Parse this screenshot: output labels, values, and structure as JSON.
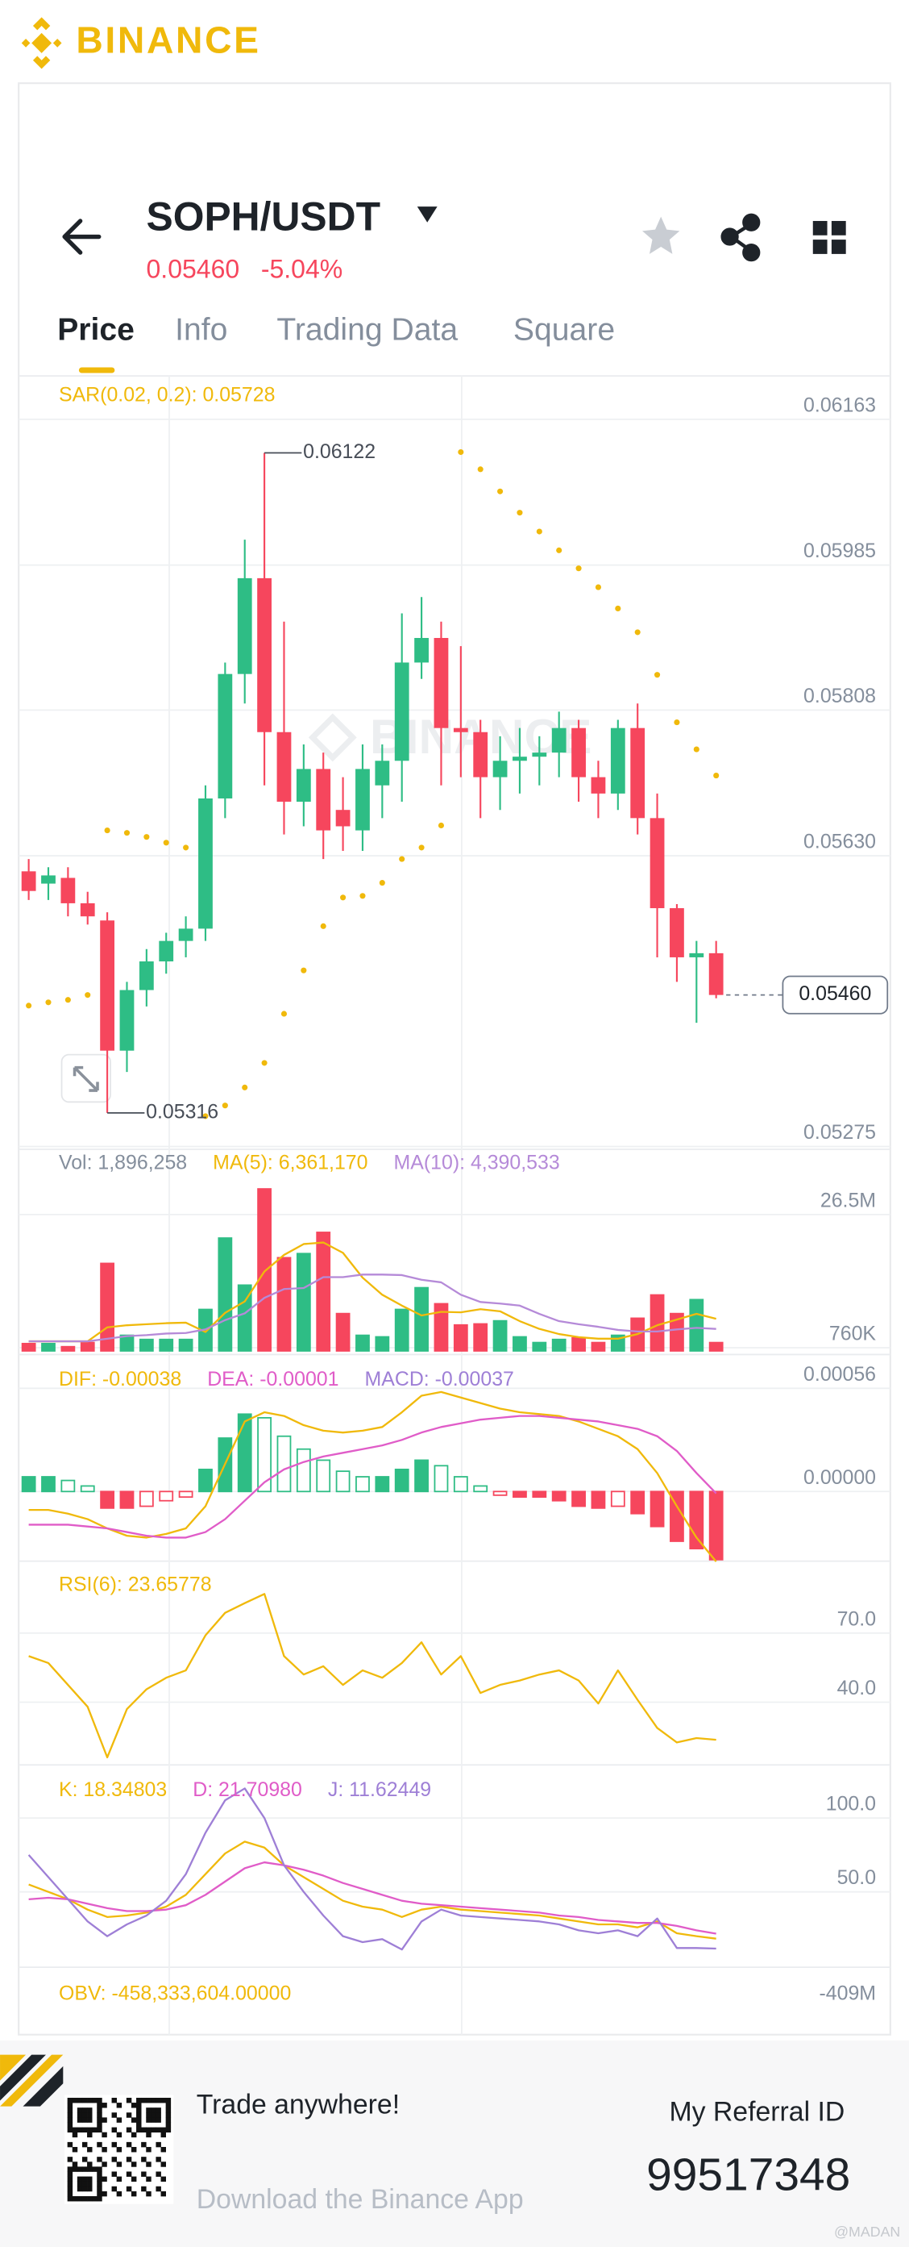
{
  "header": {
    "brand": "BINANCE"
  },
  "ticker": {
    "pair": "SOPH/USDT",
    "price": "0.05460",
    "change": "-5.04%"
  },
  "tabs": [
    "Price",
    "Info",
    "Trading Data",
    "Square"
  ],
  "chart_data": [
    {
      "type": "candlestick",
      "title": "SAR(0.02, 0.2): 0.05728",
      "title_color": "#f0b90b",
      "up_color": "#2ebd85",
      "down_color": "#f6465d",
      "sar_color": "#f0b90b",
      "grid": true,
      "open": [
        0.05611,
        0.05596,
        0.05603,
        0.05572,
        0.05551,
        0.05392,
        0.05466,
        0.05501,
        0.05526,
        0.05541,
        0.057,
        0.05852,
        0.05969,
        0.05781,
        0.05696,
        0.05736,
        0.05686,
        0.05661,
        0.05716,
        0.05746,
        0.05866,
        0.05896,
        0.05786,
        0.05781,
        0.05726,
        0.05746,
        0.05751,
        0.05756,
        0.05786,
        0.05726,
        0.05706,
        0.05786,
        0.05676,
        0.05566,
        0.05506,
        0.05511
      ],
      "high": [
        0.05626,
        0.05616,
        0.05616,
        0.05586,
        0.05561,
        0.05476,
        0.05516,
        0.05536,
        0.05556,
        0.05716,
        0.05866,
        0.06016,
        0.06122,
        0.05916,
        0.05766,
        0.05756,
        0.05726,
        0.05766,
        0.05766,
        0.05926,
        0.05946,
        0.05916,
        0.05886,
        0.05796,
        0.05776,
        0.05786,
        0.05776,
        0.05806,
        0.05796,
        0.05746,
        0.05796,
        0.05816,
        0.05706,
        0.05571,
        0.05526,
        0.05526
      ],
      "low": [
        0.05576,
        0.05576,
        0.05556,
        0.05546,
        0.05316,
        0.05366,
        0.05446,
        0.05486,
        0.05506,
        0.05526,
        0.05676,
        0.05816,
        0.05716,
        0.05656,
        0.05666,
        0.05626,
        0.05636,
        0.05636,
        0.05676,
        0.05696,
        0.05846,
        0.05716,
        0.05726,
        0.05676,
        0.05686,
        0.05706,
        0.05716,
        0.05726,
        0.05696,
        0.05676,
        0.05686,
        0.05656,
        0.05506,
        0.05476,
        0.05426,
        0.05456
      ],
      "close": [
        0.05587,
        0.05606,
        0.05572,
        0.05556,
        0.05392,
        0.05466,
        0.05501,
        0.05526,
        0.05541,
        0.057,
        0.05852,
        0.05969,
        0.05781,
        0.05696,
        0.05736,
        0.05661,
        0.05666,
        0.05736,
        0.05746,
        0.05866,
        0.05896,
        0.05786,
        0.05781,
        0.05726,
        0.05746,
        0.05751,
        0.05756,
        0.05786,
        0.05726,
        0.05706,
        0.05786,
        0.05676,
        0.05566,
        0.05506,
        0.05511,
        0.0546
      ],
      "sar": [
        0.05447,
        0.05451,
        0.05454,
        0.0546,
        0.05661,
        0.05658,
        0.05653,
        0.05646,
        0.0564,
        0.05312,
        0.05325,
        0.05347,
        0.05377,
        0.05437,
        0.0549,
        0.05544,
        0.05579,
        0.05581,
        0.05597,
        0.05626,
        0.0564,
        0.05667,
        0.06123,
        0.06102,
        0.06075,
        0.06049,
        0.06026,
        0.06003,
        0.05981,
        0.05958,
        0.05932,
        0.05903,
        0.05851,
        0.05793,
        0.0576,
        0.05728
      ],
      "max_label": 0.06122,
      "min_label": 0.05316,
      "last_price": {
        "value": 0.0546,
        "label": "0.05460"
      },
      "ylim": [
        0.05275,
        0.06216
      ],
      "yticks": [
        0.06163,
        0.05985,
        0.05808,
        {
          "value": 0.0563,
          "label": "0.05630"
        },
        0.05275
      ]
    },
    {
      "type": "bar",
      "title": "Vol: 1,896,258",
      "title_color": "#848e9c",
      "grid": true,
      "values": [
        1700000,
        1700000,
        1100000,
        1900000,
        17200000,
        3300000,
        2500000,
        2500000,
        2500000,
        8300000,
        22100000,
        13000000,
        31600000,
        18300000,
        19100000,
        23200000,
        7500000,
        3300000,
        3000000,
        8300000,
        12500000,
        9400000,
        5300000,
        5500000,
        6100000,
        3000000,
        1900000,
        2500000,
        2800000,
        1900000,
        3300000,
        6600000,
        11100000,
        7500000,
        10200000,
        1896258
      ],
      "series": [
        {
          "name": "MA(5): 6,361,170",
          "color": "#f0b90b",
          "values": [
            2000000,
            2000000,
            2000000,
            2000000,
            4700000,
            5100000,
            5300000,
            5500000,
            5600000,
            3800000,
            7500000,
            9700000,
            15500000,
            18700000,
            20800000,
            21100000,
            19100000,
            14300000,
            11000000,
            8900000,
            7000000,
            7700000,
            7600000,
            8200000,
            7800000,
            5900000,
            4400000,
            3400000,
            2800000,
            2500000,
            2500000,
            3400000,
            5100000,
            6200000,
            7300000,
            6361170
          ]
        },
        {
          "name": "MA(10): 4,390,533",
          "color": "#b58ad8",
          "values": [
            2000000,
            2000000,
            2000000,
            2000000,
            2500000,
            3000000,
            3200000,
            3500000,
            3600000,
            4300000,
            6100000,
            7400000,
            10400000,
            12100000,
            12300000,
            14400000,
            14400000,
            14900000,
            14900000,
            14800000,
            13900000,
            13400000,
            11000000,
            9600000,
            9300000,
            8900000,
            7300000,
            5900000,
            5300000,
            4800000,
            4200000,
            3900000,
            3900000,
            4300000,
            4600000,
            4390533
          ]
        }
      ],
      "ylim": [
        0,
        38000000
      ],
      "yticks": [
        {
          "value": 26500000,
          "label": "26.5M"
        },
        {
          "value": 760000,
          "label": "760K"
        }
      ]
    },
    {
      "type": "macd",
      "up_color": "#2ebd85",
      "down_color": "#f6465d",
      "grid": true,
      "series": [
        {
          "name": "DIF: -0.00038",
          "color": "#f0b90b",
          "values": [
            -0.0001,
            -0.0001,
            -0.00012,
            -0.00015,
            -0.0002,
            -0.00024,
            -0.00025,
            -0.00023,
            -0.0002,
            -8e-05,
            0.00015,
            0.00038,
            0.00043,
            0.00041,
            0.00036,
            0.00033,
            0.00032,
            0.00033,
            0.00035,
            0.00043,
            0.00052,
            0.00054,
            0.00051,
            0.00048,
            0.00045,
            0.00043,
            0.00042,
            0.00041,
            0.00038,
            0.00034,
            0.0003,
            0.00023,
            0.0001,
            -8e-05,
            -0.00025,
            -0.00038
          ]
        },
        {
          "name": "DEA: -0.00001",
          "color": "#e05cc8",
          "values": [
            -0.00018,
            -0.00018,
            -0.00018,
            -0.00019,
            -0.0002,
            -0.00022,
            -0.00024,
            -0.00025,
            -0.00025,
            -0.00022,
            -0.00015,
            -5e-05,
            5e-05,
            0.00012,
            0.00016,
            0.00019,
            0.00021,
            0.00023,
            0.00025,
            0.00028,
            0.00032,
            0.00035,
            0.00037,
            0.00039,
            0.0004,
            0.00041,
            0.00041,
            0.0004,
            0.00039,
            0.00038,
            0.00036,
            0.00034,
            0.0003,
            0.00022,
            0.0001,
            -1e-05
          ]
        }
      ],
      "histogram": {
        "name": "MACD: -0.00037",
        "color": "#9e7fd6",
        "values": [
          8e-05,
          8e-05,
          6e-05,
          3e-05,
          -9e-05,
          -9e-05,
          -8e-05,
          -5e-05,
          -3e-05,
          0.00012,
          0.00029,
          0.00042,
          0.0004,
          0.0003,
          0.00023,
          0.00017,
          0.00011,
          8e-05,
          8e-05,
          0.00012,
          0.00017,
          0.00014,
          8e-05,
          3e-05,
          -2e-05,
          -3e-05,
          -3e-05,
          -5e-05,
          -8e-05,
          -9e-05,
          -8e-05,
          -0.00012,
          -0.00019,
          -0.00027,
          -0.00031,
          -0.00037
        ]
      },
      "ylim": [
        -0.00037,
        0.00072
      ],
      "yticks": [
        0.00056,
        {
          "value": 0,
          "label": "0.00000"
        }
      ]
    },
    {
      "type": "line",
      "grid": true,
      "series": [
        {
          "name": "RSI(6): 23.65778",
          "color": "#f0b90b",
          "values": [
            60,
            57,
            47.5,
            38,
            16,
            37,
            45.6,
            50.6,
            53.8,
            69,
            78.8,
            83,
            87,
            60,
            52,
            55.6,
            47.5,
            53.8,
            50.6,
            57,
            66,
            52,
            60,
            44,
            47.5,
            49.4,
            52,
            53.8,
            49.4,
            39.4,
            53.8,
            41,
            28.8,
            22.5,
            24.4,
            23.65778
          ]
        }
      ],
      "ylim": [
        14,
        100
      ],
      "yticks": [
        {
          "value": 70,
          "label": "70.0"
        },
        {
          "value": 40,
          "label": "40.0"
        }
      ]
    },
    {
      "type": "line",
      "grid": true,
      "series": [
        {
          "name": "K: 18.34803",
          "color": "#f0b90b",
          "values": [
            55,
            50,
            45,
            38,
            33,
            34,
            36,
            40,
            48,
            62,
            76,
            84,
            80,
            68,
            60,
            52,
            44,
            40,
            38,
            33,
            38,
            40,
            38,
            37,
            36,
            35,
            34,
            32,
            30,
            28,
            28,
            26,
            30,
            22,
            20,
            18.34803
          ]
        },
        {
          "name": "D: 21.70980",
          "color": "#e05cc8",
          "values": [
            45,
            46,
            45,
            42,
            39,
            37,
            37,
            38,
            41,
            48,
            57,
            66,
            70,
            68,
            65,
            61,
            56,
            52,
            48,
            44,
            42,
            41,
            40,
            39,
            38,
            37,
            36,
            34,
            33,
            31,
            30,
            29,
            29,
            27,
            24,
            21.7098
          ]
        },
        {
          "name": "J: 11.62449",
          "color": "#9e7fd6",
          "values": [
            75,
            60,
            45,
            30,
            20,
            28,
            34,
            44,
            62,
            90,
            112,
            120,
            100,
            68,
            50,
            34,
            20,
            16,
            18,
            11,
            30,
            38,
            34,
            33,
            32,
            31,
            30,
            28,
            24,
            22,
            24,
            20,
            32,
            12,
            12,
            11.62449
          ]
        }
      ],
      "ylim": [
        0,
        134
      ],
      "yticks": [
        {
          "value": 100,
          "label": "100.0"
        },
        {
          "value": 50,
          "label": "50.0"
        }
      ]
    },
    {
      "type": "line",
      "title": "OBV: -458,333,604.00000",
      "title_color": "#f0b90b",
      "grid": false,
      "yticks": [
        {
          "value": -409000000,
          "label": "-409M"
        }
      ]
    }
  ],
  "footer": {
    "slogan": "Trade anywhere!",
    "download": "Download the Binance App",
    "referral_label": "My Referral ID",
    "referral_id": "99517348",
    "watermark": "@MADAN"
  }
}
